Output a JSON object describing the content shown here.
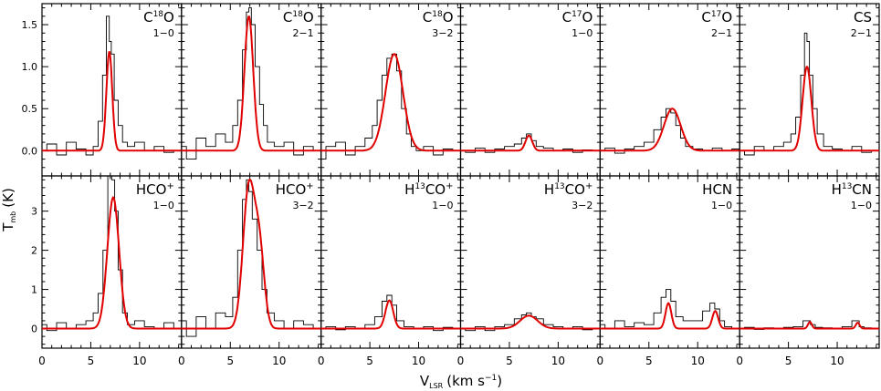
{
  "figure": {
    "ylabel_main": "T",
    "ylabel_sub": "mb",
    "ylabel_unit": "(K)",
    "xlabel_main": "V",
    "xlabel_sub": "LSR",
    "xlabel_unit": "(km s",
    "xlabel_exp": "−1",
    "xlabel_close": ")",
    "observed_color": "#000000",
    "fit_color": "#e00000"
  },
  "chart_data": [
    {
      "type": "line",
      "xlim": [
        0,
        14.3
      ],
      "ylim": [
        -0.3,
        1.75
      ],
      "x_ticks": [
        0,
        5,
        10
      ],
      "y_ticks": [
        0.0,
        0.5,
        1.0,
        1.5
      ],
      "y_ticklabels": [
        "0.0",
        "0.5",
        "1.0",
        "1.5"
      ],
      "series": [
        {
          "name": "C18O 1-0",
          "molecule": "C",
          "iso": "18",
          "tail": "O",
          "sup": "",
          "transition": "1−0",
          "x": [
            0,
            1,
            2,
            3,
            4,
            5,
            5.5,
            6,
            6.4,
            6.8,
            7.0,
            7.2,
            7.6,
            8,
            8.5,
            9,
            10,
            11,
            12,
            13,
            14
          ],
          "y": [
            0.0,
            0.08,
            -0.05,
            0.1,
            0.02,
            -0.05,
            0.05,
            0.35,
            0.9,
            1.6,
            1.3,
            1.15,
            0.6,
            0.3,
            0.1,
            0.05,
            0.1,
            0.0,
            0.05,
            -0.02,
            0.0
          ],
          "fit_center": 6.9,
          "fit_amp": 1.18,
          "fit_sigma": 0.3
        }
      ]
    },
    {
      "type": "line",
      "xlim": [
        0,
        14.3
      ],
      "ylim": [
        -0.3,
        1.75
      ],
      "x_ticks": [
        0,
        5,
        10
      ],
      "series": [
        {
          "name": "C18O 2-1",
          "molecule": "C",
          "iso": "18",
          "tail": "O",
          "sup": "",
          "transition": "2−1",
          "x": [
            0,
            1,
            2,
            3,
            4,
            5,
            5.5,
            6,
            6.5,
            6.8,
            7.0,
            7.3,
            7.8,
            8.2,
            8.6,
            9,
            10,
            11,
            12,
            13,
            14
          ],
          "y": [
            0.05,
            -0.1,
            0.15,
            0.05,
            0.2,
            0.1,
            0.3,
            0.6,
            1.2,
            1.65,
            1.7,
            1.5,
            1.0,
            0.55,
            0.3,
            0.1,
            0.05,
            0.1,
            -0.05,
            0.05,
            0.0
          ],
          "fit_center": 6.9,
          "fit_amp": 1.6,
          "fit_sigma": 0.45
        }
      ]
    },
    {
      "type": "line",
      "xlim": [
        0,
        14.3
      ],
      "ylim": [
        -0.3,
        1.75
      ],
      "x_ticks": [
        0,
        5,
        10
      ],
      "series": [
        {
          "name": "C18O 3-2",
          "molecule": "C",
          "iso": "18",
          "tail": "O",
          "sup": "",
          "transition": "3−2",
          "x": [
            0,
            1,
            2,
            3,
            4,
            5,
            5.5,
            6,
            6.5,
            7,
            7.5,
            8,
            8.5,
            9,
            9.5,
            10,
            11,
            12,
            13,
            14
          ],
          "y": [
            -0.1,
            0.05,
            0.1,
            -0.05,
            0.05,
            0.15,
            0.3,
            0.6,
            0.9,
            1.1,
            1.15,
            0.95,
            0.5,
            0.2,
            0.05,
            0.0,
            0.05,
            -0.05,
            0.02,
            0.0
          ],
          "fit_center": 7.5,
          "fit_amp": 1.15,
          "fit_sigma": 0.9
        }
      ]
    },
    {
      "type": "line",
      "xlim": [
        0,
        14.3
      ],
      "ylim": [
        -0.3,
        1.75
      ],
      "x_ticks": [
        0,
        5,
        10
      ],
      "series": [
        {
          "name": "C17O 1-0",
          "molecule": "C",
          "iso": "17",
          "tail": "O",
          "sup": "",
          "transition": "1−0",
          "x": [
            0,
            1,
            2,
            3,
            4,
            5,
            6,
            6.5,
            7,
            7.5,
            8,
            9,
            10,
            11,
            12,
            13,
            14
          ],
          "y": [
            0.0,
            -0.02,
            0.03,
            -0.02,
            0.02,
            0.05,
            0.08,
            0.15,
            0.2,
            0.12,
            0.05,
            0.03,
            0.0,
            0.02,
            -0.02,
            0.01,
            0.0
          ],
          "fit_center": 7.0,
          "fit_amp": 0.18,
          "fit_sigma": 0.35
        }
      ]
    },
    {
      "type": "line",
      "xlim": [
        0,
        14.3
      ],
      "ylim": [
        -0.3,
        1.75
      ],
      "x_ticks": [
        0,
        5,
        10
      ],
      "series": [
        {
          "name": "C17O 2-1",
          "molecule": "C",
          "iso": "17",
          "tail": "O",
          "sup": "",
          "transition": "2−1",
          "x": [
            0,
            1,
            2,
            3,
            4,
            5,
            6,
            6.5,
            7,
            7.5,
            8,
            8.5,
            9,
            10,
            11,
            12,
            13,
            14
          ],
          "y": [
            0.0,
            0.03,
            -0.03,
            0.02,
            0.05,
            0.1,
            0.25,
            0.4,
            0.5,
            0.45,
            0.3,
            0.15,
            0.05,
            0.02,
            0.0,
            0.03,
            0.0,
            0.02
          ],
          "fit_center": 7.4,
          "fit_amp": 0.5,
          "fit_sigma": 0.85
        }
      ]
    },
    {
      "type": "line",
      "xlim": [
        0,
        14.3
      ],
      "ylim": [
        -0.3,
        1.75
      ],
      "x_ticks": [
        0,
        5,
        10
      ],
      "series": [
        {
          "name": "CS 2-1",
          "molecule": "CS",
          "iso": "",
          "tail": "",
          "sup": "",
          "transition": "2−1",
          "x": [
            0,
            1,
            2,
            3,
            4,
            5,
            5.5,
            6,
            6.5,
            6.8,
            7.0,
            7.3,
            7.7,
            8.2,
            9,
            10,
            11,
            12,
            13,
            14
          ],
          "y": [
            0.0,
            -0.05,
            0.05,
            0.0,
            0.05,
            0.1,
            0.2,
            0.4,
            0.9,
            1.4,
            1.3,
            0.9,
            0.5,
            0.2,
            0.05,
            0.02,
            0.0,
            0.05,
            -0.02,
            0.0
          ],
          "fit_center": 6.9,
          "fit_amp": 1.0,
          "fit_sigma": 0.45
        }
      ]
    },
    {
      "type": "line",
      "xlim": [
        0,
        14.3
      ],
      "ylim": [
        -0.5,
        3.9
      ],
      "x_ticks": [
        0,
        5,
        10
      ],
      "y_ticks": [
        0,
        1,
        2,
        3
      ],
      "y_ticklabels": [
        "0",
        "1",
        "2",
        "3"
      ],
      "series": [
        {
          "name": "HCO+ 1-0",
          "molecule": "HCO",
          "iso": "",
          "tail": "",
          "sup": "+",
          "transition": "1−0",
          "x": [
            0,
            1,
            2,
            3,
            4,
            5,
            5.5,
            6,
            6.5,
            7,
            7.3,
            7.6,
            8,
            8.5,
            9,
            10,
            11,
            12,
            13,
            14
          ],
          "y": [
            0.1,
            -0.05,
            0.15,
            0.0,
            0.1,
            0.2,
            0.4,
            0.9,
            2.0,
            3.9,
            3.8,
            3.0,
            1.5,
            0.4,
            0.1,
            0.2,
            0.05,
            0.0,
            0.15,
            0.0
          ],
          "fit_center": 7.3,
          "fit_amp": 3.35,
          "fit_sigma": 0.6
        }
      ]
    },
    {
      "type": "line",
      "xlim": [
        0,
        14.3
      ],
      "ylim": [
        -0.5,
        3.9
      ],
      "x_ticks": [
        0,
        5,
        10
      ],
      "series": [
        {
          "name": "HCO+ 3-2",
          "molecule": "HCO",
          "iso": "",
          "tail": "",
          "sup": "+",
          "transition": "3−2",
          "x": [
            0,
            1,
            2,
            3,
            4,
            5,
            5.5,
            6,
            6.5,
            6.8,
            7.0,
            7.5,
            8,
            8.5,
            9,
            10,
            11,
            12,
            13,
            14
          ],
          "y": [
            0.2,
            -0.2,
            0.3,
            0.0,
            0.4,
            0.3,
            0.8,
            2.0,
            3.3,
            3.8,
            3.5,
            2.8,
            2.0,
            1.0,
            0.4,
            0.2,
            0.0,
            0.2,
            0.1,
            0.0
          ],
          "fit_center": 6.9,
          "fit_amp": 3.6,
          "fit_sigma": 0.6,
          "fit2_center": 8.0,
          "fit2_amp": 1.9,
          "fit2_sigma": 0.5
        }
      ]
    },
    {
      "type": "line",
      "xlim": [
        0,
        14.3
      ],
      "ylim": [
        -0.5,
        3.9
      ],
      "x_ticks": [
        0,
        5,
        10
      ],
      "series": [
        {
          "name": "H13CO+ 1-0",
          "molecule": "H",
          "iso": "13",
          "tail": "CO",
          "sup": "+",
          "transition": "1−0",
          "x": [
            0,
            1,
            2,
            3,
            4,
            5,
            6,
            6.5,
            7,
            7.5,
            8,
            9,
            10,
            11,
            12,
            13,
            14
          ],
          "y": [
            0.0,
            0.05,
            -0.03,
            0.05,
            0.0,
            0.1,
            0.3,
            0.7,
            0.85,
            0.6,
            0.2,
            0.05,
            0.0,
            0.05,
            -0.05,
            0.03,
            0.0
          ],
          "fit_center": 7.0,
          "fit_amp": 0.72,
          "fit_sigma": 0.4
        }
      ]
    },
    {
      "type": "line",
      "xlim": [
        0,
        14.3
      ],
      "ylim": [
        -0.5,
        3.9
      ],
      "x_ticks": [
        0,
        5,
        10
      ],
      "series": [
        {
          "name": "H13CO+ 3-2",
          "molecule": "H",
          "iso": "13",
          "tail": "CO",
          "sup": "+",
          "transition": "3−2",
          "x": [
            0,
            1,
            2,
            3,
            4,
            5,
            6,
            6.5,
            7,
            7.5,
            8,
            9,
            10,
            11,
            12,
            13,
            14
          ],
          "y": [
            0.0,
            -0.05,
            0.05,
            -0.05,
            0.05,
            0.1,
            0.25,
            0.35,
            0.4,
            0.3,
            0.25,
            0.1,
            0.05,
            0.0,
            0.05,
            -0.03,
            0.0
          ],
          "fit_center": 7.0,
          "fit_amp": 0.33,
          "fit_sigma": 0.9
        }
      ]
    },
    {
      "type": "line",
      "xlim": [
        0,
        14.3
      ],
      "ylim": [
        -0.5,
        3.9
      ],
      "x_ticks": [
        0,
        5,
        10
      ],
      "series": [
        {
          "name": "HCN 1-0",
          "molecule": "HCN",
          "iso": "",
          "tail": "",
          "sup": "",
          "transition": "1−0",
          "x": [
            0,
            1,
            2,
            3,
            4,
            5,
            6,
            6.5,
            7,
            7.5,
            8,
            9,
            10,
            11,
            11.5,
            12,
            12.5,
            13,
            14
          ],
          "y": [
            0.1,
            0.0,
            0.2,
            0.05,
            0.15,
            0.1,
            0.4,
            0.8,
            1.0,
            0.7,
            0.3,
            0.2,
            0.2,
            0.45,
            0.65,
            0.5,
            0.2,
            0.05,
            0.0
          ],
          "fit_center": 7.0,
          "fit_amp": 0.65,
          "fit_sigma": 0.3,
          "fit2_center": 11.8,
          "fit2_amp": 0.45,
          "fit2_sigma": 0.3
        }
      ]
    },
    {
      "type": "line",
      "xlim": [
        0,
        14.3
      ],
      "ylim": [
        -0.5,
        3.9
      ],
      "x_ticks": [
        0,
        5,
        10
      ],
      "series": [
        {
          "name": "H13CN 1-0",
          "molecule": "H",
          "iso": "13",
          "tail": "CN",
          "sup": "",
          "transition": "1−0",
          "x": [
            0,
            1,
            2,
            3,
            4,
            5,
            6,
            7,
            7.5,
            8,
            9,
            10,
            11,
            12,
            12.5,
            13,
            14
          ],
          "y": [
            0.0,
            0.03,
            -0.02,
            0.02,
            0.0,
            0.03,
            0.05,
            0.2,
            0.1,
            0.03,
            0.02,
            0.0,
            0.05,
            0.2,
            0.05,
            0.02,
            0.0
          ],
          "fit_center": 7.2,
          "fit_amp": 0.17,
          "fit_sigma": 0.2,
          "fit2_center": 12.1,
          "fit2_amp": 0.15,
          "fit2_sigma": 0.2
        }
      ]
    }
  ]
}
